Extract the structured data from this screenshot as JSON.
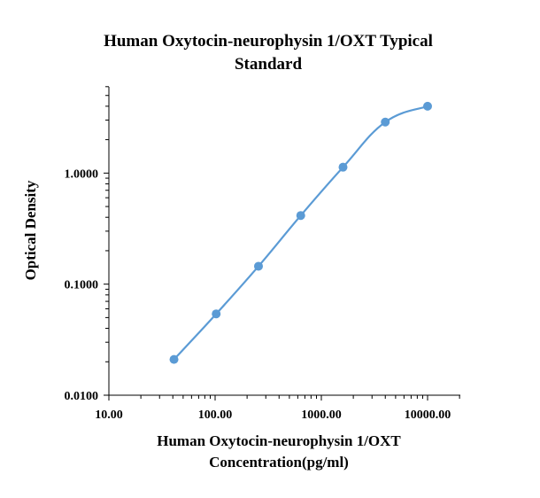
{
  "chart_data": {
    "type": "scatter",
    "title_line1": "Human Oxytocin-neurophysin 1/OXT  Typical",
    "title_line2": "Standard",
    "xlabel_line1": "Human Oxytocin-neurophysin  1/OXT",
    "xlabel_line2": "Concentration(pg/ml)",
    "ylabel": "Optical Density",
    "x_scale": "log",
    "y_scale": "log",
    "xlim": [
      10,
      10000
    ],
    "ylim": [
      0.01,
      10
    ],
    "x_ticks": [
      10,
      100,
      1000,
      10000
    ],
    "x_tick_labels": [
      "10.00",
      "100.00",
      "1000.00",
      "10000.00"
    ],
    "y_ticks": [
      0.01,
      0.1,
      1
    ],
    "y_tick_labels": [
      "0.0100",
      "0.1000",
      "1.0000"
    ],
    "grid": false,
    "legend": "none",
    "series": [
      {
        "color": "#5b9bd5",
        "smooth_line": true,
        "x": [
          41,
          102.4,
          256,
          640,
          1600,
          4000,
          10000
        ],
        "y": [
          0.021,
          0.054,
          0.145,
          0.415,
          1.13,
          2.88,
          4.0
        ]
      }
    ]
  }
}
